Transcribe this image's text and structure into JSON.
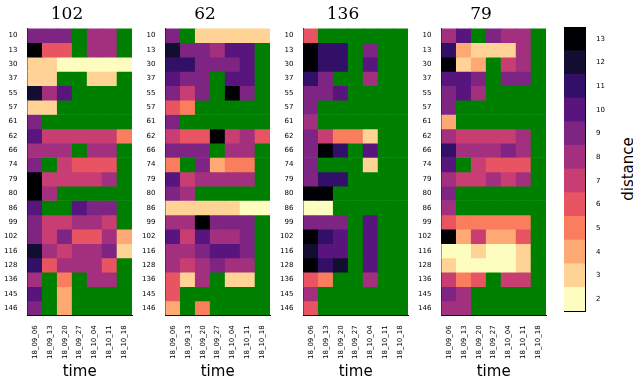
{
  "chart_data": [
    {
      "type": "heatmap",
      "title": "102",
      "x_label": "time",
      "x": [
        "18_09_06",
        "18_09_13",
        "18_09_20",
        "18_09_27",
        "18_10_04",
        "18_10_11",
        "18_10_18"
      ],
      "y": [
        "10",
        "13",
        "30",
        "37",
        "55",
        "57",
        "61",
        "62",
        "66",
        "74",
        "79",
        "80",
        "86",
        "99",
        "102",
        "116",
        "128",
        "136",
        "145",
        "146"
      ],
      "cells": [
        [
          9,
          9,
          9,
          null,
          8,
          8,
          null
        ],
        [
          13,
          6,
          6,
          null,
          8,
          8,
          null
        ],
        [
          3,
          3,
          2,
          2,
          2,
          2,
          2
        ],
        [
          3,
          3,
          null,
          null,
          3,
          3,
          null
        ],
        [
          12,
          8,
          10,
          null,
          null,
          null,
          null
        ],
        [
          3,
          3,
          null,
          null,
          null,
          null,
          null
        ],
        [
          9,
          null,
          null,
          null,
          null,
          null,
          null
        ],
        [
          10,
          7,
          7,
          7,
          7,
          7,
          5
        ],
        [
          8,
          8,
          8,
          null,
          8,
          8,
          null
        ],
        [
          9,
          null,
          7,
          6,
          6,
          6,
          null
        ],
        [
          13,
          7,
          7,
          7,
          7,
          8,
          null
        ],
        [
          13,
          8,
          null,
          null,
          null,
          null,
          null
        ],
        [
          10,
          null,
          null,
          10,
          9,
          9,
          null
        ],
        [
          9,
          7,
          7,
          8,
          8,
          7,
          null
        ],
        [
          9,
          7,
          9,
          6,
          6,
          8,
          4
        ],
        [
          12,
          8,
          7,
          8,
          8,
          9,
          3
        ],
        [
          11,
          6,
          8,
          8,
          8,
          6,
          null
        ],
        [
          8,
          null,
          5,
          null,
          8,
          8,
          null
        ],
        [
          10,
          null,
          4,
          null,
          null,
          null,
          null
        ],
        [
          9,
          null,
          4,
          null,
          null,
          null,
          null
        ]
      ]
    },
    {
      "type": "heatmap",
      "title": "62",
      "x_label": "time",
      "x": [
        "18_09_06",
        "18_09_13",
        "18_09_20",
        "18_09_27",
        "18_10_04",
        "18_10_11",
        "18_10_18"
      ],
      "y": [
        "10",
        "13",
        "30",
        "37",
        "55",
        "57",
        "61",
        "62",
        "66",
        "74",
        "79",
        "80",
        "86",
        "99",
        "102",
        "116",
        "128",
        "136",
        "145",
        "146"
      ],
      "cells": [
        [
          9,
          null,
          3,
          3,
          3,
          3,
          3
        ],
        [
          12,
          9,
          9,
          8,
          10,
          10,
          null
        ],
        [
          11,
          11,
          9,
          9,
          9,
          10,
          null
        ],
        [
          10,
          9,
          9,
          null,
          10,
          10,
          null
        ],
        [
          9,
          7,
          9,
          null,
          13,
          9,
          null
        ],
        [
          6,
          5,
          null,
          null,
          null,
          null,
          null
        ],
        [
          9,
          null,
          null,
          null,
          null,
          null,
          null
        ],
        [
          7,
          6,
          6,
          13,
          7,
          8,
          6
        ],
        [
          9,
          9,
          9,
          null,
          8,
          8,
          null
        ],
        [
          5,
          null,
          9,
          4,
          5,
          5,
          null
        ],
        [
          10,
          7,
          8,
          8,
          8,
          8,
          null
        ],
        [
          9,
          8,
          null,
          null,
          null,
          null,
          null
        ],
        [
          3,
          3,
          3,
          3,
          3,
          2,
          2
        ],
        [
          8,
          8,
          13,
          9,
          9,
          9,
          null
        ],
        [
          10,
          7,
          10,
          8,
          8,
          9,
          null
        ],
        [
          8,
          8,
          9,
          10,
          10,
          9,
          null
        ],
        [
          8,
          7,
          8,
          9,
          8,
          8,
          null
        ],
        [
          6,
          3,
          8,
          null,
          3,
          3,
          null
        ],
        [
          6,
          null,
          null,
          null,
          null,
          null,
          null
        ],
        [
          4,
          null,
          5,
          null,
          null,
          null,
          null
        ]
      ]
    },
    {
      "type": "heatmap",
      "title": "136",
      "x_label": "time",
      "x": [
        "18_09_06",
        "18_09_13",
        "18_09_20",
        "18_09_27",
        "18_10_04",
        "18_10_11",
        "18_10_18"
      ],
      "y": [
        "10",
        "13",
        "30",
        "37",
        "55",
        "57",
        "61",
        "62",
        "66",
        "74",
        "79",
        "80",
        "86",
        "99",
        "102",
        "116",
        "128",
        "136",
        "145",
        "146"
      ],
      "cells": [
        [
          6,
          null,
          null,
          null,
          null,
          null,
          null
        ],
        [
          13,
          11,
          11,
          null,
          9,
          null,
          null
        ],
        [
          13,
          11,
          11,
          null,
          10,
          null,
          null
        ],
        [
          11,
          9,
          null,
          null,
          8,
          null,
          null
        ],
        [
          9,
          9,
          10,
          null,
          null,
          null,
          null
        ],
        [
          9,
          null,
          null,
          null,
          null,
          null,
          null
        ],
        [
          8,
          null,
          null,
          null,
          null,
          null,
          null
        ],
        [
          9,
          7,
          5,
          5,
          3,
          null,
          null
        ],
        [
          9,
          13,
          11,
          null,
          10,
          null,
          null
        ],
        [
          9,
          null,
          null,
          null,
          3,
          null,
          null
        ],
        [
          9,
          11,
          11,
          null,
          null,
          null,
          null
        ],
        [
          13,
          13,
          null,
          null,
          null,
          null,
          null
        ],
        [
          2,
          2,
          null,
          null,
          null,
          null,
          null
        ],
        [
          9,
          9,
          9,
          null,
          10,
          null,
          null
        ],
        [
          13,
          11,
          10,
          null,
          10,
          null,
          null
        ],
        [
          12,
          10,
          10,
          null,
          10,
          null,
          null
        ],
        [
          13,
          11,
          12,
          null,
          10,
          null,
          null
        ],
        [
          6,
          5,
          null,
          null,
          8,
          null,
          null
        ],
        [
          8,
          null,
          null,
          null,
          null,
          null,
          null
        ],
        [
          6,
          null,
          null,
          null,
          null,
          null,
          null
        ]
      ]
    },
    {
      "type": "heatmap",
      "title": "79",
      "x_label": "time",
      "x": [
        "18_09_06",
        "18_09_13",
        "18_09_20",
        "18_09_27",
        "18_10_04",
        "18_10_11",
        "18_10_18"
      ],
      "y": [
        "10",
        "13",
        "30",
        "37",
        "55",
        "57",
        "61",
        "62",
        "66",
        "74",
        "79",
        "80",
        "86",
        "99",
        "102",
        "116",
        "128",
        "136",
        "145",
        "146"
      ],
      "cells": [
        [
          8,
          10,
          null,
          9,
          8,
          8,
          null
        ],
        [
          11,
          4,
          3,
          3,
          3,
          8,
          null
        ],
        [
          13,
          3,
          4,
          null,
          7,
          8,
          null
        ],
        [
          10,
          10,
          9,
          null,
          9,
          9,
          null
        ],
        [
          9,
          10,
          8,
          null,
          null,
          null,
          null
        ],
        [
          9,
          null,
          null,
          null,
          null,
          null,
          null
        ],
        [
          4,
          null,
          null,
          null,
          null,
          null,
          null
        ],
        [
          8,
          7,
          7,
          7,
          7,
          8,
          null
        ],
        [
          11,
          8,
          8,
          8,
          9,
          8,
          null
        ],
        [
          10,
          null,
          7,
          6,
          6,
          6,
          null
        ],
        [
          8,
          7,
          7,
          8,
          7,
          8,
          null
        ],
        [
          9,
          null,
          null,
          null,
          null,
          null,
          null
        ],
        [
          8,
          null,
          null,
          null,
          null,
          null,
          null
        ],
        [
          6,
          5,
          5,
          5,
          5,
          5,
          null
        ],
        [
          13,
          4,
          7,
          4,
          4,
          6,
          null
        ],
        [
          2,
          2,
          3,
          2,
          2,
          3,
          null
        ],
        [
          3,
          2,
          2,
          2,
          2,
          3,
          null
        ],
        [
          7,
          5,
          6,
          null,
          7,
          7,
          null
        ],
        [
          9,
          8,
          null,
          null,
          null,
          null,
          null
        ],
        [
          8,
          8,
          null,
          null,
          null,
          null,
          null
        ]
      ],
      "colorbar": {
        "label": "distance",
        "range": [
          1.5,
          13.5
        ],
        "ticks": [
          2,
          3,
          4,
          5,
          6,
          7,
          8,
          9,
          10,
          11,
          12,
          13
        ]
      }
    }
  ]
}
